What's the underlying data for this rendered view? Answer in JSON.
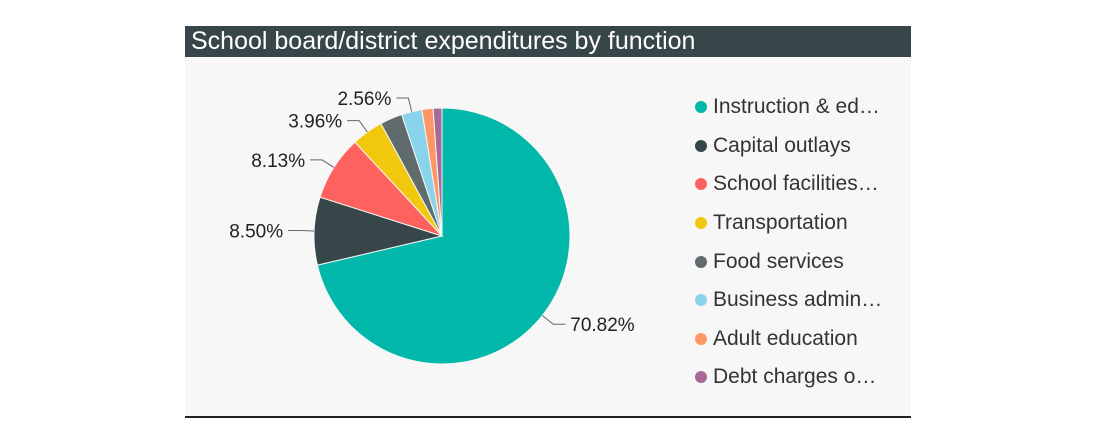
{
  "chart_data": {
    "type": "pie",
    "title": "School board/district expenditures by function",
    "slices": [
      {
        "label": "Instruction & ed…",
        "value": 70.82,
        "display": "70.82%",
        "color": "#01B8AA",
        "show_label": true
      },
      {
        "label": "Capital outlays",
        "value": 8.5,
        "display": "8.50%",
        "color": "#374649",
        "show_label": true
      },
      {
        "label": "School facilities…",
        "value": 8.13,
        "display": "8.13%",
        "color": "#FD625E",
        "show_label": true
      },
      {
        "label": "Transportation",
        "value": 3.96,
        "display": "3.96%",
        "color": "#F2C80F",
        "show_label": true
      },
      {
        "label": "Food services",
        "value": 2.8,
        "display": "",
        "color": "#5F6B6D",
        "show_label": false
      },
      {
        "label": "Business admin…",
        "value": 2.56,
        "display": "2.56%",
        "color": "#8AD4EB",
        "show_label": true
      },
      {
        "label": "Adult education",
        "value": 1.4,
        "display": "",
        "color": "#FE9666",
        "show_label": false
      },
      {
        "label": "Debt charges o…",
        "value": 1.1,
        "display": "",
        "color": "#A66999",
        "show_label": false
      }
    ],
    "legend_position": "right"
  }
}
